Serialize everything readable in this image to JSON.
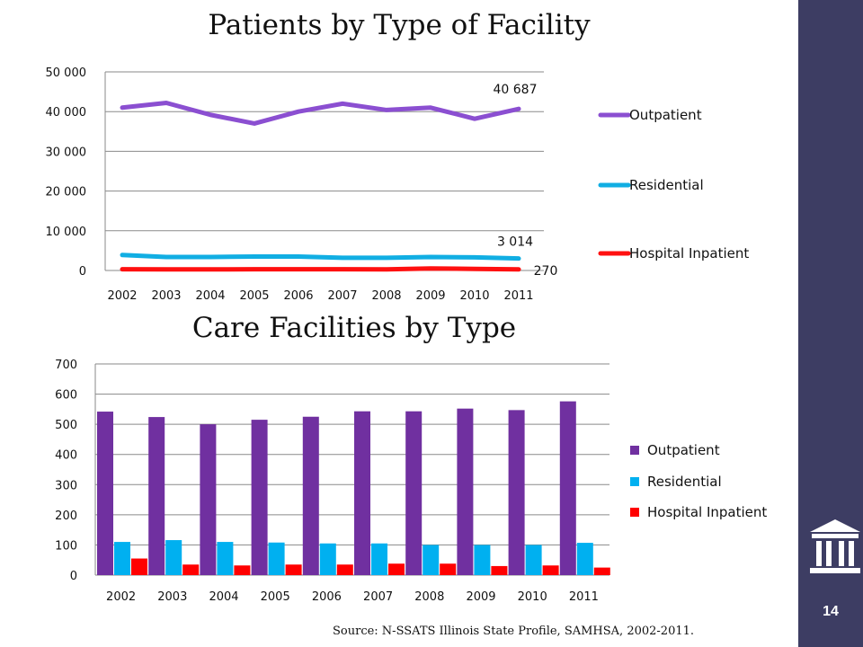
{
  "slide": {
    "page_number": "14",
    "source": "Source: N-SSATS Illinois State Profile, SAMHSA, 2002-2011.",
    "sidebar_color": "#3d3d63",
    "logo_icon": "building-columns-icon"
  },
  "chart_data": [
    {
      "type": "line",
      "title": "Patients by Type of Facility",
      "categories": [
        "2002",
        "2003",
        "2004",
        "2005",
        "2006",
        "2007",
        "2008",
        "2009",
        "2010",
        "2011"
      ],
      "yticks": [
        "0",
        "10 000",
        "20 000",
        "30 000",
        "40 000",
        "50 000"
      ],
      "ylim": [
        0,
        50000
      ],
      "grid": true,
      "legend_position": "right",
      "series": [
        {
          "name": "Outpatient",
          "color": "#8b4fd1",
          "values": [
            41000,
            42200,
            39200,
            37000,
            40000,
            42000,
            40400,
            41000,
            38200,
            40687
          ]
        },
        {
          "name": "Residential",
          "color": "#11aee3",
          "values": [
            3900,
            3400,
            3400,
            3500,
            3500,
            3200,
            3200,
            3400,
            3300,
            3014
          ]
        },
        {
          "name": "Hospital Inpatient",
          "color": "#ff1010",
          "values": [
            300,
            280,
            290,
            300,
            310,
            300,
            290,
            500,
            400,
            270
          ]
        }
      ],
      "data_labels": [
        {
          "series": 0,
          "index": 9,
          "text": "40 687"
        },
        {
          "series": 1,
          "index": 9,
          "text": "3 014"
        },
        {
          "series": 2,
          "index": 9,
          "text": "270"
        }
      ]
    },
    {
      "type": "bar",
      "title": "Care Facilities by Type",
      "categories": [
        "2002",
        "2003",
        "2004",
        "2005",
        "2006",
        "2007",
        "2008",
        "2009",
        "2010",
        "2011"
      ],
      "yticks": [
        "0",
        "100",
        "200",
        "300",
        "400",
        "500",
        "600",
        "700"
      ],
      "ylim": [
        0,
        700
      ],
      "grid": true,
      "legend_position": "right",
      "series": [
        {
          "name": "Outpatient",
          "color": "#7030a0",
          "values": [
            542,
            524,
            500,
            515,
            525,
            543,
            543,
            552,
            547,
            576
          ]
        },
        {
          "name": "Residential",
          "color": "#00b0f0",
          "values": [
            110,
            116,
            110,
            108,
            105,
            105,
            100,
            100,
            100,
            107
          ]
        },
        {
          "name": "Hospital Inpatient",
          "color": "#ff0000",
          "values": [
            55,
            35,
            32,
            35,
            35,
            38,
            38,
            30,
            32,
            25
          ]
        }
      ]
    }
  ]
}
